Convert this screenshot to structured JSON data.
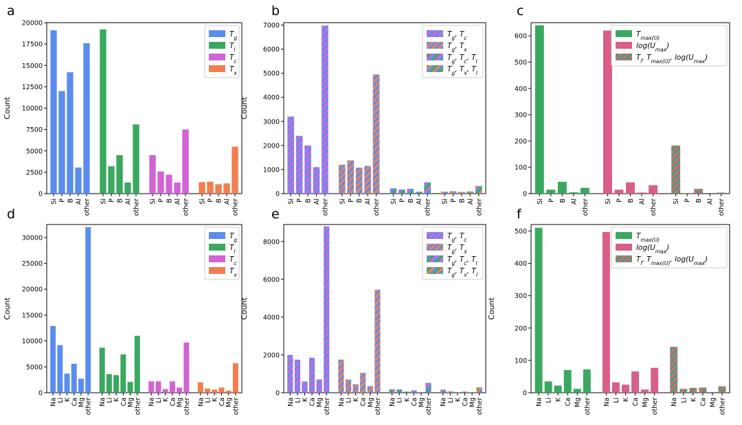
{
  "colors": {
    "Tg": "#5b8def",
    "Tl": "#3aa85f",
    "Tc": "#d263d6",
    "Tx": "#f27e4f",
    "Tmax": "#3aa85f",
    "logU": "#d95f86"
  },
  "chart_data": [
    {
      "panel": "a",
      "type": "bar",
      "ylabel": "Count",
      "ylim": [
        0,
        20000
      ],
      "yticks": [
        0,
        2500,
        5000,
        7500,
        10000,
        12500,
        15000,
        17500,
        20000
      ],
      "legend": [
        {
          "label": "T_g",
          "main": "T",
          "sub": "g",
          "colors": [
            "#5b8def"
          ]
        },
        {
          "label": "T_l",
          "main": "T",
          "sub": "l",
          "colors": [
            "#3aa85f"
          ]
        },
        {
          "label": "T_c",
          "main": "T",
          "sub": "c",
          "colors": [
            "#d263d6"
          ]
        },
        {
          "label": "T_x",
          "main": "T",
          "sub": "x",
          "colors": [
            "#f27e4f"
          ]
        }
      ],
      "groups": [
        {
          "colors": [
            "#5b8def"
          ],
          "categories": [
            "Si",
            "P",
            "B",
            "Al",
            "other"
          ],
          "values": [
            19100,
            12000,
            14200,
            3050,
            17600
          ]
        },
        {
          "colors": [
            "#3aa85f"
          ],
          "categories": [
            "Si",
            "P",
            "B",
            "Al",
            "other"
          ],
          "values": [
            19200,
            3200,
            4500,
            1300,
            8100
          ]
        },
        {
          "colors": [
            "#d263d6"
          ],
          "categories": [
            "Si",
            "P",
            "B",
            "Al",
            "other"
          ],
          "values": [
            4500,
            2600,
            2200,
            1300,
            7500
          ]
        },
        {
          "colors": [
            "#f27e4f"
          ],
          "categories": [
            "Si",
            "P",
            "B",
            "Al",
            "other"
          ],
          "values": [
            1350,
            1400,
            1100,
            1200,
            5500
          ]
        }
      ]
    },
    {
      "panel": "b",
      "type": "bar",
      "ylabel": "Count",
      "ylim": [
        0,
        7100
      ],
      "yticks": [
        0,
        1000,
        2000,
        3000,
        4000,
        5000,
        6000,
        7000
      ],
      "legend": [
        {
          "label": "T_g, T_c",
          "main": "T",
          "sub": "g",
          "tail": ", T",
          "sub2": "c",
          "colors": [
            "#d263d6",
            "#5b8def"
          ]
        },
        {
          "label": "T_g, T_x",
          "main": "T",
          "sub": "g",
          "tail": ", T",
          "sub2": "x",
          "colors": [
            "#f27e4f",
            "#5b8def"
          ]
        },
        {
          "label": "T_g, T_c, T_l",
          "main": "T",
          "sub": "g",
          "tail": ", T",
          "sub2": "c",
          "tail2": ", T",
          "sub3": "l",
          "colors": [
            "#d263d6",
            "#5b8def",
            "#3aa85f"
          ]
        },
        {
          "label": "T_g, T_x, T_l",
          "main": "T",
          "sub": "g",
          "tail": ", T",
          "sub2": "x",
          "tail2": ", T",
          "sub3": "l",
          "colors": [
            "#f27e4f",
            "#5b8def",
            "#3aa85f"
          ]
        }
      ],
      "groups": [
        {
          "colors": [
            "#d263d6",
            "#5b8def"
          ],
          "categories": [
            "Si",
            "P",
            "B",
            "Al",
            "other"
          ],
          "values": [
            3200,
            2400,
            2000,
            1100,
            6980
          ]
        },
        {
          "colors": [
            "#f27e4f",
            "#5b8def"
          ],
          "categories": [
            "Si",
            "P",
            "B",
            "Al",
            "other"
          ],
          "values": [
            1200,
            1380,
            1080,
            1150,
            4950
          ]
        },
        {
          "colors": [
            "#d263d6",
            "#5b8def",
            "#3aa85f"
          ],
          "categories": [
            "Si",
            "P",
            "B",
            "Al",
            "other"
          ],
          "values": [
            220,
            170,
            200,
            80,
            470
          ]
        },
        {
          "colors": [
            "#f27e4f",
            "#5b8def",
            "#3aa85f"
          ],
          "categories": [
            "Si",
            "P",
            "B",
            "Al",
            "other"
          ],
          "values": [
            80,
            100,
            70,
            90,
            320
          ]
        }
      ]
    },
    {
      "panel": "c",
      "type": "bar",
      "ylabel": "",
      "ylim": [
        0,
        650
      ],
      "yticks": [
        0,
        100,
        200,
        300,
        400,
        500,
        600
      ],
      "legend": [
        {
          "label": "T_max(U)",
          "main": "T",
          "sub": "max(U)",
          "colors": [
            "#3aa85f"
          ]
        },
        {
          "label": "log(U_max)",
          "main": "log(U",
          "sub": "max",
          "tail": ")",
          "colors": [
            "#d95f86"
          ]
        },
        {
          "label": "T_l, T_max(U), log(U_max)",
          "main": "T",
          "sub": "l",
          "tail": ", T",
          "sub2": "max(U)",
          "tail2": ", log(U",
          "sub3": "max",
          "tail3": ")",
          "colors": [
            "#3aa85f",
            "#d95f86"
          ]
        }
      ],
      "groups": [
        {
          "colors": [
            "#3aa85f"
          ],
          "categories": [
            "Si",
            "P",
            "B",
            "Al",
            "other"
          ],
          "values": [
            640,
            15,
            45,
            5,
            22
          ]
        },
        {
          "colors": [
            "#d95f86"
          ],
          "categories": [
            "Si",
            "P",
            "B",
            "Al",
            "other"
          ],
          "values": [
            620,
            15,
            43,
            4,
            32
          ]
        },
        {
          "colors": [
            "#3aa85f",
            "#d95f86"
          ],
          "categories": [
            "Si",
            "P",
            "B",
            "Al",
            "other"
          ],
          "values": [
            183,
            2,
            18,
            0,
            4
          ]
        }
      ]
    },
    {
      "panel": "d",
      "type": "bar",
      "ylabel": "Count",
      "ylim": [
        0,
        32500
      ],
      "yticks": [
        0,
        5000,
        10000,
        15000,
        20000,
        25000,
        30000
      ],
      "legend": [
        {
          "label": "T_g",
          "main": "T",
          "sub": "g",
          "colors": [
            "#5b8def"
          ]
        },
        {
          "label": "T_l",
          "main": "T",
          "sub": "l",
          "colors": [
            "#3aa85f"
          ]
        },
        {
          "label": "T_c",
          "main": "T",
          "sub": "c",
          "colors": [
            "#d263d6"
          ]
        },
        {
          "label": "T_x",
          "main": "T",
          "sub": "x",
          "colors": [
            "#f27e4f"
          ]
        }
      ],
      "groups": [
        {
          "colors": [
            "#5b8def"
          ],
          "categories": [
            "Na",
            "Li",
            "K",
            "Ca",
            "Mg",
            "other"
          ],
          "values": [
            12900,
            9200,
            3700,
            5600,
            2700,
            32000
          ]
        },
        {
          "colors": [
            "#3aa85f"
          ],
          "categories": [
            "Na",
            "Li",
            "K",
            "Ca",
            "Mg",
            "other"
          ],
          "values": [
            8700,
            3600,
            3400,
            7400,
            2100,
            11000
          ]
        },
        {
          "colors": [
            "#d263d6"
          ],
          "categories": [
            "Na",
            "Li",
            "K",
            "Ca",
            "Mg",
            "other"
          ],
          "values": [
            2200,
            2200,
            700,
            2200,
            1000,
            9700
          ]
        },
        {
          "colors": [
            "#f27e4f"
          ],
          "categories": [
            "Na",
            "Li",
            "K",
            "Ca",
            "Mg",
            "other"
          ],
          "values": [
            2000,
            800,
            600,
            1000,
            400,
            5700
          ]
        }
      ]
    },
    {
      "panel": "e",
      "type": "bar",
      "ylabel": "Count",
      "ylim": [
        0,
        8900
      ],
      "yticks": [
        0,
        2000,
        4000,
        6000,
        8000
      ],
      "legend": [
        {
          "label": "T_g, T_c",
          "main": "T",
          "sub": "g",
          "tail": ", T",
          "sub2": "c",
          "colors": [
            "#d263d6",
            "#5b8def"
          ]
        },
        {
          "label": "T_g, T_x",
          "main": "T",
          "sub": "g",
          "tail": ", T",
          "sub2": "x",
          "colors": [
            "#f27e4f",
            "#5b8def"
          ]
        },
        {
          "label": "T_g, T_c, T_l",
          "main": "T",
          "sub": "g",
          "tail": ", T",
          "sub2": "c",
          "tail2": ", T",
          "sub3": "l",
          "colors": [
            "#d263d6",
            "#5b8def",
            "#3aa85f"
          ]
        },
        {
          "label": "T_g, T_x, T_l",
          "main": "T",
          "sub": "g",
          "tail": ", T",
          "sub2": "x",
          "tail2": ", T",
          "sub3": "l",
          "colors": [
            "#f27e4f",
            "#5b8def",
            "#3aa85f"
          ]
        }
      ],
      "groups": [
        {
          "colors": [
            "#d263d6",
            "#5b8def"
          ],
          "categories": [
            "Na",
            "Li",
            "K",
            "Ca",
            "Mg",
            "other"
          ],
          "values": [
            2000,
            1750,
            600,
            1850,
            700,
            8800
          ]
        },
        {
          "colors": [
            "#f27e4f",
            "#5b8def"
          ],
          "categories": [
            "Na",
            "Li",
            "K",
            "Ca",
            "Mg",
            "other"
          ],
          "values": [
            1750,
            700,
            450,
            1050,
            350,
            5450
          ]
        },
        {
          "colors": [
            "#d263d6",
            "#5b8def",
            "#3aa85f"
          ],
          "categories": [
            "Na",
            "Li",
            "K",
            "Ca",
            "Mg",
            "other"
          ],
          "values": [
            180,
            170,
            60,
            130,
            40,
            520
          ]
        },
        {
          "colors": [
            "#f27e4f",
            "#5b8def",
            "#3aa85f"
          ],
          "categories": [
            "Na",
            "Li",
            "K",
            "Ca",
            "Mg",
            "other"
          ],
          "values": [
            170,
            70,
            40,
            60,
            30,
            280
          ]
        }
      ]
    },
    {
      "panel": "f",
      "type": "bar",
      "ylabel": "Count",
      "ylim": [
        0,
        520
      ],
      "yticks": [
        0,
        100,
        200,
        300,
        400,
        500
      ],
      "legend": [
        {
          "label": "T_max(U)",
          "main": "T",
          "sub": "max(U)",
          "colors": [
            "#3aa85f"
          ]
        },
        {
          "label": "log(U_max)",
          "main": "log(U",
          "sub": "max",
          "tail": ")",
          "colors": [
            "#d95f86"
          ]
        },
        {
          "label": "T_l, T_max(U), log(U_max)",
          "main": "T",
          "sub": "l",
          "tail": ", T",
          "sub2": "max(U)",
          "tail2": ", log(U",
          "sub3": "max",
          "tail3": ")",
          "colors": [
            "#3aa85f",
            "#d95f86"
          ]
        }
      ],
      "groups": [
        {
          "colors": [
            "#3aa85f"
          ],
          "categories": [
            "Na",
            "Li",
            "K",
            "Ca",
            "Mg",
            "other"
          ],
          "values": [
            510,
            35,
            22,
            70,
            12,
            72
          ]
        },
        {
          "colors": [
            "#d95f86"
          ],
          "categories": [
            "Na",
            "Li",
            "K",
            "Ca",
            "Mg",
            "other"
          ],
          "values": [
            497,
            32,
            25,
            66,
            10,
            77
          ]
        },
        {
          "colors": [
            "#3aa85f",
            "#d95f86"
          ],
          "categories": [
            "Na",
            "Li",
            "K",
            "Ca",
            "Mg",
            "other"
          ],
          "values": [
            142,
            12,
            15,
            16,
            0,
            20
          ]
        }
      ]
    }
  ]
}
